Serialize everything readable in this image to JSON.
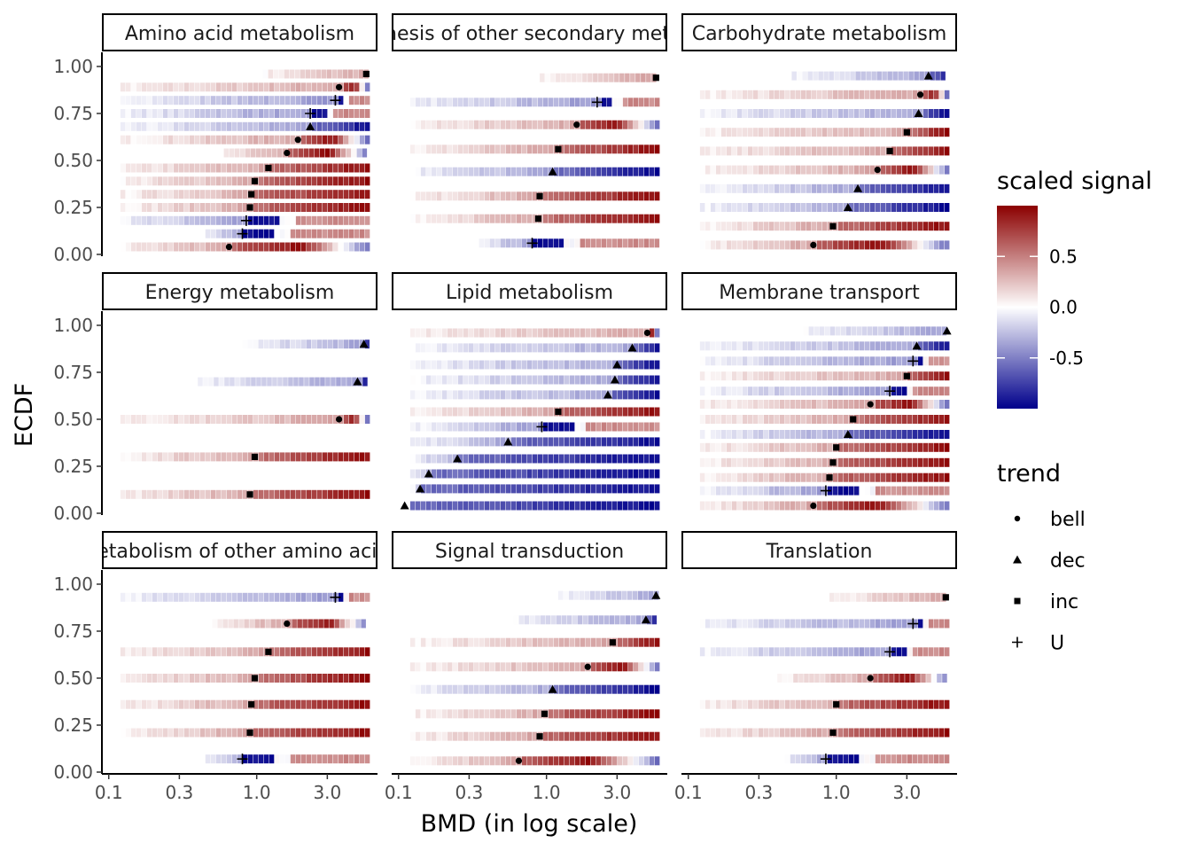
{
  "chart_data": {
    "type": "heatmap",
    "xlabel": "BMD (in log scale)",
    "ylabel": "ECDF",
    "x_scale": "log10",
    "xlim": [
      0.1,
      5.5
    ],
    "ylim": [
      0,
      1
    ],
    "x_ticks": [
      0.1,
      0.3,
      1.0,
      3.0
    ],
    "x_tick_labels": [
      "0.1",
      "0.3",
      "1.0",
      "3.0"
    ],
    "y_ticks": [
      0,
      0.25,
      0.5,
      0.75,
      1.0
    ],
    "y_tick_labels": [
      "0.00",
      "0.25",
      "0.50",
      "0.75",
      "1.00"
    ],
    "grid": false,
    "legend_color": {
      "title": "scaled signal",
      "ticks": [
        0.5,
        0.0,
        -0.5
      ],
      "tick_labels": [
        "0.5",
        "0.0",
        "-0.5"
      ],
      "low_color": "#00008B",
      "mid_color": "#FFFFFF",
      "high_color": "#8B0000"
    },
    "legend_shape": {
      "title": "trend",
      "items": [
        {
          "label": "bell",
          "shape": "circle"
        },
        {
          "label": "dec",
          "shape": "triangle"
        },
        {
          "label": "inc",
          "shape": "square"
        },
        {
          "label": "U",
          "shape": "plus"
        }
      ]
    },
    "panels": [
      {
        "title": "Amino acid metabolism",
        "rows": [
          {
            "ecdf": 0.96,
            "start": 1.1,
            "bmd": 5.5,
            "trend": "inc"
          },
          {
            "ecdf": 0.89,
            "start": 0.12,
            "bmd": 3.6,
            "trend": "bell"
          },
          {
            "ecdf": 0.82,
            "start": 0.12,
            "bmd": 3.4,
            "trend": "U"
          },
          {
            "ecdf": 0.75,
            "start": 0.12,
            "bmd": 2.3,
            "trend": "U"
          },
          {
            "ecdf": 0.68,
            "start": 0.12,
            "bmd": 2.3,
            "trend": "dec"
          },
          {
            "ecdf": 0.61,
            "start": 0.12,
            "bmd": 1.9,
            "trend": "bell"
          },
          {
            "ecdf": 0.54,
            "start": 0.6,
            "bmd": 1.6,
            "trend": "bell"
          },
          {
            "ecdf": 0.46,
            "start": 0.12,
            "bmd": 1.2,
            "trend": "inc"
          },
          {
            "ecdf": 0.39,
            "start": 0.12,
            "bmd": 0.97,
            "trend": "inc"
          },
          {
            "ecdf": 0.32,
            "start": 0.12,
            "bmd": 0.92,
            "trend": "inc"
          },
          {
            "ecdf": 0.25,
            "start": 0.12,
            "bmd": 0.9,
            "trend": "inc"
          },
          {
            "ecdf": 0.18,
            "start": 0.12,
            "bmd": 0.85,
            "trend": "U"
          },
          {
            "ecdf": 0.11,
            "start": 0.45,
            "bmd": 0.8,
            "trend": "U"
          },
          {
            "ecdf": 0.04,
            "start": 0.12,
            "bmd": 0.65,
            "trend": "bell"
          }
        ]
      },
      {
        "title": "Biosynthesis of other secondary metabolites",
        "rows": [
          {
            "ecdf": 0.94,
            "start": 0.9,
            "bmd": 5.5,
            "trend": "inc"
          },
          {
            "ecdf": 0.81,
            "start": 0.12,
            "bmd": 2.2,
            "trend": "U"
          },
          {
            "ecdf": 0.69,
            "start": 0.12,
            "bmd": 1.6,
            "trend": "bell"
          },
          {
            "ecdf": 0.56,
            "start": 0.12,
            "bmd": 1.2,
            "trend": "inc"
          },
          {
            "ecdf": 0.44,
            "start": 0.12,
            "bmd": 1.1,
            "trend": "dec"
          },
          {
            "ecdf": 0.31,
            "start": 0.12,
            "bmd": 0.9,
            "trend": "inc"
          },
          {
            "ecdf": 0.19,
            "start": 0.12,
            "bmd": 0.88,
            "trend": "inc"
          },
          {
            "ecdf": 0.06,
            "start": 0.35,
            "bmd": 0.8,
            "trend": "U"
          }
        ]
      },
      {
        "title": "Carbohydrate metabolism",
        "rows": [
          {
            "ecdf": 0.95,
            "start": 0.5,
            "bmd": 4.2,
            "trend": "dec"
          },
          {
            "ecdf": 0.85,
            "start": 0.12,
            "bmd": 3.7,
            "trend": "bell"
          },
          {
            "ecdf": 0.75,
            "start": 0.12,
            "bmd": 3.6,
            "trend": "dec"
          },
          {
            "ecdf": 0.65,
            "start": 0.12,
            "bmd": 3.0,
            "trend": "inc"
          },
          {
            "ecdf": 0.55,
            "start": 0.12,
            "bmd": 2.3,
            "trend": "inc"
          },
          {
            "ecdf": 0.45,
            "start": 0.12,
            "bmd": 1.9,
            "trend": "bell"
          },
          {
            "ecdf": 0.35,
            "start": 0.12,
            "bmd": 1.4,
            "trend": "dec"
          },
          {
            "ecdf": 0.25,
            "start": 0.12,
            "bmd": 1.2,
            "trend": "dec"
          },
          {
            "ecdf": 0.15,
            "start": 0.12,
            "bmd": 0.95,
            "trend": "inc"
          },
          {
            "ecdf": 0.05,
            "start": 0.12,
            "bmd": 0.7,
            "trend": "bell"
          }
        ]
      },
      {
        "title": "Energy metabolism",
        "rows": [
          {
            "ecdf": 0.9,
            "start": 0.8,
            "bmd": 5.3,
            "trend": "dec"
          },
          {
            "ecdf": 0.7,
            "start": 0.4,
            "bmd": 4.8,
            "trend": "dec"
          },
          {
            "ecdf": 0.5,
            "start": 0.12,
            "bmd": 3.6,
            "trend": "bell"
          },
          {
            "ecdf": 0.3,
            "start": 0.12,
            "bmd": 0.97,
            "trend": "inc"
          },
          {
            "ecdf": 0.1,
            "start": 0.12,
            "bmd": 0.9,
            "trend": "inc"
          }
        ]
      },
      {
        "title": "Lipid metabolism",
        "rows": [
          {
            "ecdf": 0.96,
            "start": 0.12,
            "bmd": 4.8,
            "trend": "bell"
          },
          {
            "ecdf": 0.88,
            "start": 0.12,
            "bmd": 3.8,
            "trend": "dec"
          },
          {
            "ecdf": 0.79,
            "start": 0.12,
            "bmd": 3.0,
            "trend": "dec"
          },
          {
            "ecdf": 0.71,
            "start": 0.12,
            "bmd": 2.9,
            "trend": "dec"
          },
          {
            "ecdf": 0.63,
            "start": 0.12,
            "bmd": 2.6,
            "trend": "dec"
          },
          {
            "ecdf": 0.54,
            "start": 0.12,
            "bmd": 1.2,
            "trend": "inc"
          },
          {
            "ecdf": 0.46,
            "start": 0.12,
            "bmd": 0.93,
            "trend": "U"
          },
          {
            "ecdf": 0.38,
            "start": 0.12,
            "bmd": 0.55,
            "trend": "dec"
          },
          {
            "ecdf": 0.29,
            "start": 0.12,
            "bmd": 0.25,
            "trend": "dec"
          },
          {
            "ecdf": 0.21,
            "start": 0.12,
            "bmd": 0.16,
            "trend": "dec"
          },
          {
            "ecdf": 0.13,
            "start": 0.12,
            "bmd": 0.14,
            "trend": "dec"
          },
          {
            "ecdf": 0.04,
            "start": 0.12,
            "bmd": 0.11,
            "trend": "dec"
          }
        ]
      },
      {
        "title": "Membrane transport",
        "rows": [
          {
            "ecdf": 0.97,
            "start": 0.6,
            "bmd": 5.6,
            "trend": "dec"
          },
          {
            "ecdf": 0.89,
            "start": 0.12,
            "bmd": 3.5,
            "trend": "dec"
          },
          {
            "ecdf": 0.81,
            "start": 0.12,
            "bmd": 3.3,
            "trend": "U"
          },
          {
            "ecdf": 0.73,
            "start": 0.12,
            "bmd": 3.0,
            "trend": "inc"
          },
          {
            "ecdf": 0.65,
            "start": 0.12,
            "bmd": 2.3,
            "trend": "U"
          },
          {
            "ecdf": 0.58,
            "start": 0.12,
            "bmd": 1.7,
            "trend": "bell"
          },
          {
            "ecdf": 0.5,
            "start": 0.12,
            "bmd": 1.3,
            "trend": "inc"
          },
          {
            "ecdf": 0.42,
            "start": 0.12,
            "bmd": 1.2,
            "trend": "dec"
          },
          {
            "ecdf": 0.35,
            "start": 0.12,
            "bmd": 1.0,
            "trend": "inc"
          },
          {
            "ecdf": 0.27,
            "start": 0.12,
            "bmd": 0.95,
            "trend": "inc"
          },
          {
            "ecdf": 0.19,
            "start": 0.12,
            "bmd": 0.9,
            "trend": "inc"
          },
          {
            "ecdf": 0.12,
            "start": 0.12,
            "bmd": 0.85,
            "trend": "U"
          },
          {
            "ecdf": 0.04,
            "start": 0.12,
            "bmd": 0.7,
            "trend": "bell"
          }
        ]
      },
      {
        "title": "Metabolism of other amino acids",
        "rows": [
          {
            "ecdf": 0.93,
            "start": 0.12,
            "bmd": 3.4,
            "trend": "U"
          },
          {
            "ecdf": 0.79,
            "start": 0.5,
            "bmd": 1.6,
            "trend": "bell"
          },
          {
            "ecdf": 0.64,
            "start": 0.12,
            "bmd": 1.2,
            "trend": "inc"
          },
          {
            "ecdf": 0.5,
            "start": 0.12,
            "bmd": 0.97,
            "trend": "inc"
          },
          {
            "ecdf": 0.36,
            "start": 0.12,
            "bmd": 0.92,
            "trend": "inc"
          },
          {
            "ecdf": 0.21,
            "start": 0.12,
            "bmd": 0.9,
            "trend": "inc"
          },
          {
            "ecdf": 0.07,
            "start": 0.45,
            "bmd": 0.8,
            "trend": "U"
          }
        ]
      },
      {
        "title": "Signal transduction",
        "rows": [
          {
            "ecdf": 0.94,
            "start": 1.2,
            "bmd": 5.5,
            "trend": "dec"
          },
          {
            "ecdf": 0.81,
            "start": 0.6,
            "bmd": 4.7,
            "trend": "dec"
          },
          {
            "ecdf": 0.69,
            "start": 0.12,
            "bmd": 2.8,
            "trend": "inc"
          },
          {
            "ecdf": 0.56,
            "start": 0.12,
            "bmd": 1.9,
            "trend": "bell"
          },
          {
            "ecdf": 0.44,
            "start": 0.12,
            "bmd": 1.1,
            "trend": "dec"
          },
          {
            "ecdf": 0.31,
            "start": 0.12,
            "bmd": 0.97,
            "trend": "inc"
          },
          {
            "ecdf": 0.19,
            "start": 0.12,
            "bmd": 0.9,
            "trend": "inc"
          },
          {
            "ecdf": 0.06,
            "start": 0.12,
            "bmd": 0.65,
            "trend": "bell"
          }
        ]
      },
      {
        "title": "Translation",
        "rows": [
          {
            "ecdf": 0.93,
            "start": 0.9,
            "bmd": 5.5,
            "trend": "inc"
          },
          {
            "ecdf": 0.79,
            "start": 0.12,
            "bmd": 3.3,
            "trend": "U"
          },
          {
            "ecdf": 0.64,
            "start": 0.12,
            "bmd": 2.3,
            "trend": "U"
          },
          {
            "ecdf": 0.5,
            "start": 0.4,
            "bmd": 1.7,
            "trend": "bell"
          },
          {
            "ecdf": 0.36,
            "start": 0.12,
            "bmd": 1.0,
            "trend": "inc"
          },
          {
            "ecdf": 0.21,
            "start": 0.12,
            "bmd": 0.95,
            "trend": "inc"
          },
          {
            "ecdf": 0.07,
            "start": 0.45,
            "bmd": 0.85,
            "trend": "U"
          }
        ]
      }
    ]
  }
}
